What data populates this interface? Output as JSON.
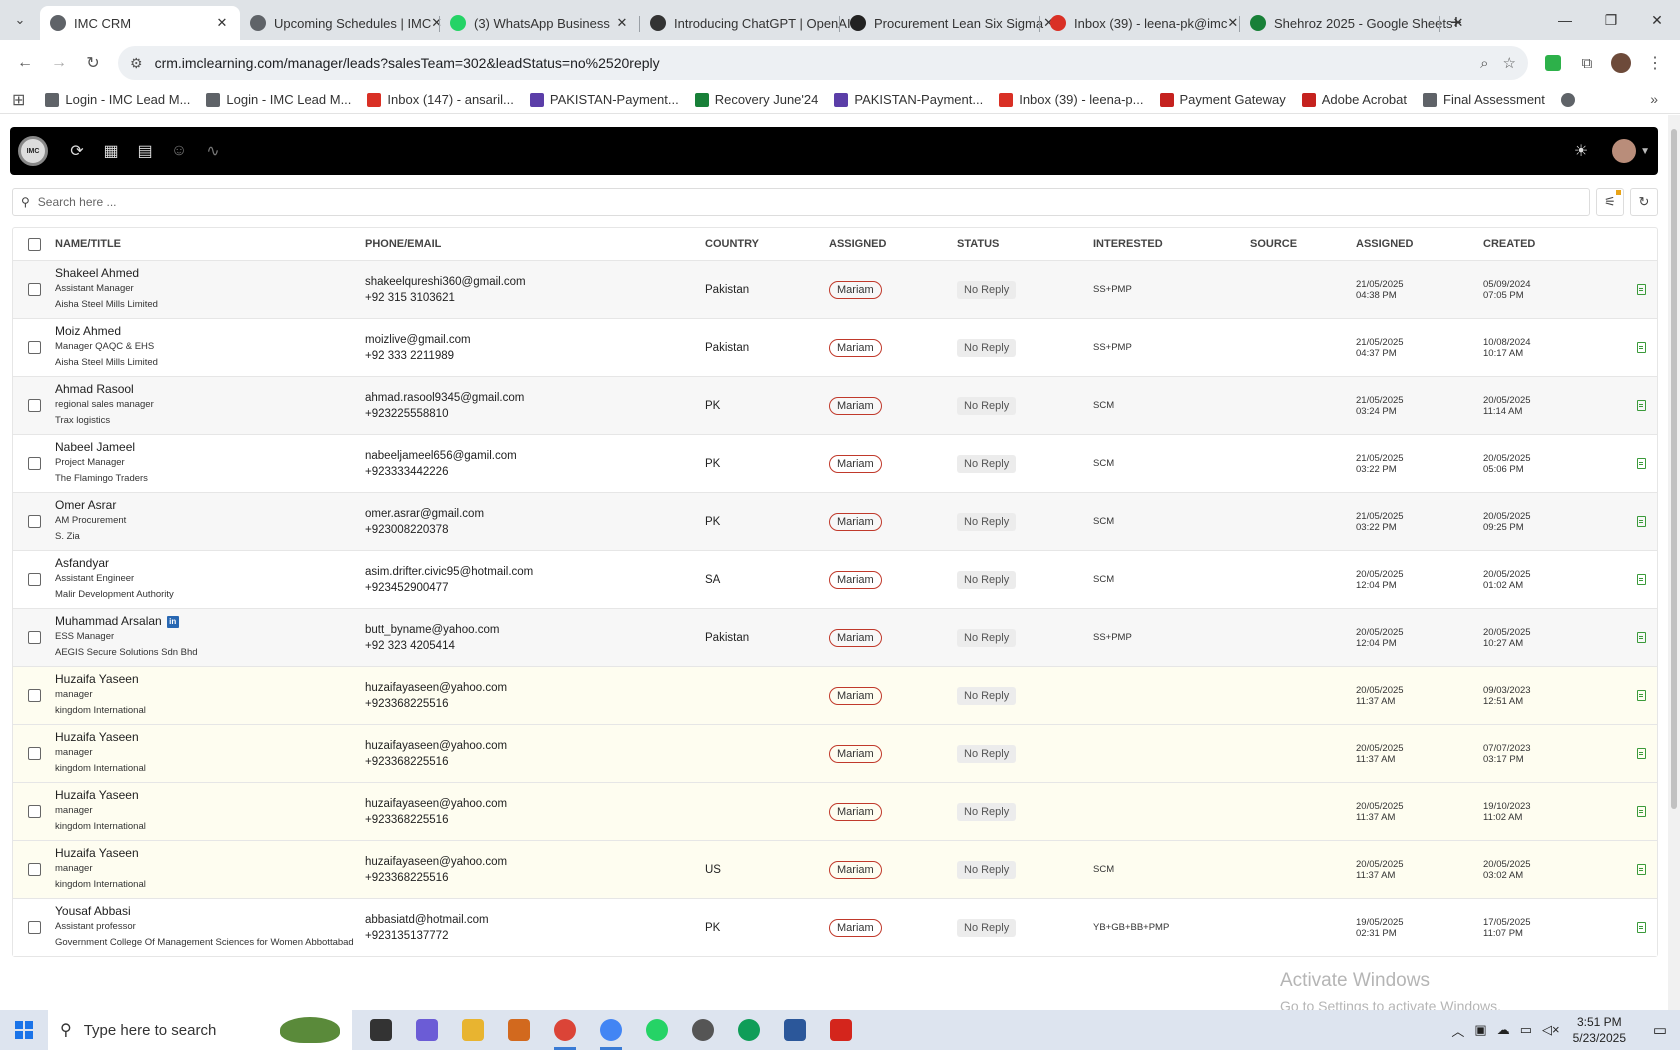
{
  "browser": {
    "tabs": [
      {
        "title": "IMC CRM",
        "active": true,
        "color": "#5f6368"
      },
      {
        "title": "Upcoming Schedules | IMC",
        "active": false,
        "color": "#5f6368"
      },
      {
        "title": "(3) WhatsApp Business",
        "active": false,
        "color": "#25d366"
      },
      {
        "title": "Introducing ChatGPT | OpenAI",
        "active": false,
        "color": "#333333"
      },
      {
        "title": "Procurement Lean Six Sigma",
        "active": false,
        "color": "#222222"
      },
      {
        "title": "Inbox (39) - leena-pk@imc",
        "active": false,
        "color": "#d93025"
      },
      {
        "title": "Shehroz 2025 - Google Sheets",
        "active": false,
        "color": "#188038"
      }
    ],
    "url": "crm.imclearning.com/manager/leads?salesTeam=302&leadStatus=no%2520reply",
    "bookmarks": [
      {
        "label": "Login - IMC Lead M...",
        "color": "#5f6368"
      },
      {
        "label": "Login - IMC Lead M...",
        "color": "#5f6368"
      },
      {
        "label": "Inbox (147) - ansaril...",
        "color": "#d93025"
      },
      {
        "label": "PAKISTAN-Payment...",
        "color": "#5b3ea8"
      },
      {
        "label": "Recovery June'24",
        "color": "#188038"
      },
      {
        "label": "PAKISTAN-Payment...",
        "color": "#5b3ea8"
      },
      {
        "label": "Inbox (39) - leena-p...",
        "color": "#d93025"
      },
      {
        "label": "Payment Gateway",
        "color": "#c5221f"
      },
      {
        "label": "Adobe Acrobat",
        "color": "#c5221f"
      },
      {
        "label": "Final Assessment",
        "color": "#5f6368"
      }
    ]
  },
  "app": {
    "logo_text": "IMC",
    "search_placeholder": "Search here ...",
    "columns": {
      "name": "NAME/TITLE",
      "phone": "PHONE/EMAIL",
      "country": "COUNTRY",
      "assigned": "ASSIGNED",
      "status": "STATUS",
      "interested": "INTERESTED",
      "source": "SOURCE",
      "assigned_date": "ASSIGNED",
      "created": "CREATED"
    },
    "leads": [
      {
        "name": "Shakeel Ahmed",
        "title": "Assistant Manager",
        "company": "Aisha Steel Mills Limited",
        "email": "shakeelqureshi360@gmail.com",
        "phone": "+92 315 3103621",
        "country": "Pakistan",
        "assigned": "Mariam",
        "status": "No Reply",
        "interested": "SS+PMP",
        "source": "",
        "assigned_date": "21/05/2025",
        "assigned_time": "04:38 PM",
        "created_date": "05/09/2024",
        "created_time": "07:05 PM",
        "bg": "grey",
        "linkedin": false
      },
      {
        "name": "Moiz Ahmed",
        "title": "Manager QAQC & EHS",
        "company": "Aisha Steel Mills Limited",
        "email": "moizlive@gmail.com",
        "phone": "+92 333 2211989",
        "country": "Pakistan",
        "assigned": "Mariam",
        "status": "No Reply",
        "interested": "SS+PMP",
        "source": "",
        "assigned_date": "21/05/2025",
        "assigned_time": "04:37 PM",
        "created_date": "10/08/2024",
        "created_time": "10:17 AM",
        "bg": "white",
        "linkedin": false
      },
      {
        "name": "Ahmad Rasool",
        "title": "regional sales manager",
        "company": "Trax logistics",
        "email": "ahmad.rasool9345@gmail.com",
        "phone": "+923225558810",
        "country": "PK",
        "assigned": "Mariam",
        "status": "No Reply",
        "interested": "SCM",
        "source": "",
        "assigned_date": "21/05/2025",
        "assigned_time": "03:24 PM",
        "created_date": "20/05/2025",
        "created_time": "11:14 AM",
        "bg": "grey",
        "linkedin": false
      },
      {
        "name": "Nabeel Jameel",
        "title": "Project Manager",
        "company": "The Flamingo Traders",
        "email": "nabeeljameel656@gamil.com",
        "phone": "+923333442226",
        "country": "PK",
        "assigned": "Mariam",
        "status": "No Reply",
        "interested": "SCM",
        "source": "",
        "assigned_date": "21/05/2025",
        "assigned_time": "03:22 PM",
        "created_date": "20/05/2025",
        "created_time": "05:06 PM",
        "bg": "white",
        "linkedin": false
      },
      {
        "name": "Omer Asrar",
        "title": "AM Procurement",
        "company": "S. Zia",
        "email": "omer.asrar@gmail.com",
        "phone": "+923008220378",
        "country": "PK",
        "assigned": "Mariam",
        "status": "No Reply",
        "interested": "SCM",
        "source": "",
        "assigned_date": "21/05/2025",
        "assigned_time": "03:22 PM",
        "created_date": "20/05/2025",
        "created_time": "09:25 PM",
        "bg": "grey",
        "linkedin": false
      },
      {
        "name": "Asfandyar",
        "title": "Assistant Engineer",
        "company": "Malir Development Authority",
        "email": "asim.drifter.civic95@hotmail.com",
        "phone": "+923452900477",
        "country": "SA",
        "assigned": "Mariam",
        "status": "No Reply",
        "interested": "SCM",
        "source": "",
        "assigned_date": "20/05/2025",
        "assigned_time": "12:04 PM",
        "created_date": "20/05/2025",
        "created_time": "01:02 AM",
        "bg": "white",
        "linkedin": false
      },
      {
        "name": "Muhammad Arsalan",
        "title": "ESS Manager",
        "company": "AEGIS Secure Solutions Sdn Bhd",
        "email": "butt_byname@yahoo.com",
        "phone": "+92 323 4205414",
        "country": "Pakistan",
        "assigned": "Mariam",
        "status": "No Reply",
        "interested": "SS+PMP",
        "source": "",
        "assigned_date": "20/05/2025",
        "assigned_time": "12:04 PM",
        "created_date": "20/05/2025",
        "created_time": "10:27 AM",
        "bg": "grey",
        "linkedin": true
      },
      {
        "name": "Huzaifa Yaseen",
        "title": "manager",
        "company": "kingdom International",
        "email": "huzaifayaseen@yahoo.com",
        "phone": "+923368225516",
        "country": "",
        "assigned": "Mariam",
        "status": "No Reply",
        "interested": "",
        "source": "",
        "assigned_date": "20/05/2025",
        "assigned_time": "11:37 AM",
        "created_date": "09/03/2023",
        "created_time": "12:51 AM",
        "bg": "yellow",
        "linkedin": false
      },
      {
        "name": "Huzaifa Yaseen",
        "title": "manager",
        "company": "kingdom International",
        "email": "huzaifayaseen@yahoo.com",
        "phone": "+923368225516",
        "country": "",
        "assigned": "Mariam",
        "status": "No Reply",
        "interested": "",
        "source": "",
        "assigned_date": "20/05/2025",
        "assigned_time": "11:37 AM",
        "created_date": "07/07/2023",
        "created_time": "03:17 PM",
        "bg": "yellow",
        "linkedin": false
      },
      {
        "name": "Huzaifa Yaseen",
        "title": "manager",
        "company": "kingdom International",
        "email": "huzaifayaseen@yahoo.com",
        "phone": "+923368225516",
        "country": "",
        "assigned": "Mariam",
        "status": "No Reply",
        "interested": "",
        "source": "",
        "assigned_date": "20/05/2025",
        "assigned_time": "11:37 AM",
        "created_date": "19/10/2023",
        "created_time": "11:02 AM",
        "bg": "yellow",
        "linkedin": false
      },
      {
        "name": "Huzaifa Yaseen",
        "title": "manager",
        "company": "kingdom International",
        "email": "huzaifayaseen@yahoo.com",
        "phone": "+923368225516",
        "country": "US",
        "assigned": "Mariam",
        "status": "No Reply",
        "interested": "SCM",
        "source": "",
        "assigned_date": "20/05/2025",
        "assigned_time": "11:37 AM",
        "created_date": "20/05/2025",
        "created_time": "03:02 AM",
        "bg": "yellow",
        "linkedin": false
      },
      {
        "name": "Yousaf Abbasi",
        "title": "Assistant professor",
        "company": "Government College Of Management Sciences for Women Abbottabad",
        "email": "abbasiatd@hotmail.com",
        "phone": "+923135137772",
        "country": "PK",
        "assigned": "Mariam",
        "status": "No Reply",
        "interested": "YB+GB+BB+PMP",
        "source": "",
        "assigned_date": "19/05/2025",
        "assigned_time": "02:31 PM",
        "created_date": "17/05/2025",
        "created_time": "11:07 PM",
        "bg": "white",
        "linkedin": false
      }
    ]
  },
  "watermark": {
    "line1": "Activate Windows",
    "line2": "Go to Settings to activate Windows."
  },
  "taskbar": {
    "search_placeholder": "Type here to search",
    "time": "3:51 PM",
    "date": "5/23/2025",
    "apps": [
      {
        "name": "task-view",
        "color": "#333333"
      },
      {
        "name": "copilot",
        "color": "#6b5cd6"
      },
      {
        "name": "file-explorer",
        "color": "#e8b430"
      },
      {
        "name": "app-orange",
        "color": "#d2691e"
      },
      {
        "name": "chrome-profile-1",
        "color": "#db4437",
        "active": true
      },
      {
        "name": "chrome-profile-2",
        "color": "#4285f4",
        "active": true
      },
      {
        "name": "whatsapp",
        "color": "#25d366"
      },
      {
        "name": "clock-app",
        "color": "#555555"
      },
      {
        "name": "chrome-profile-3",
        "color": "#0f9d58"
      },
      {
        "name": "word",
        "color": "#2b579a"
      },
      {
        "name": "acrobat",
        "color": "#d4251c"
      }
    ]
  }
}
